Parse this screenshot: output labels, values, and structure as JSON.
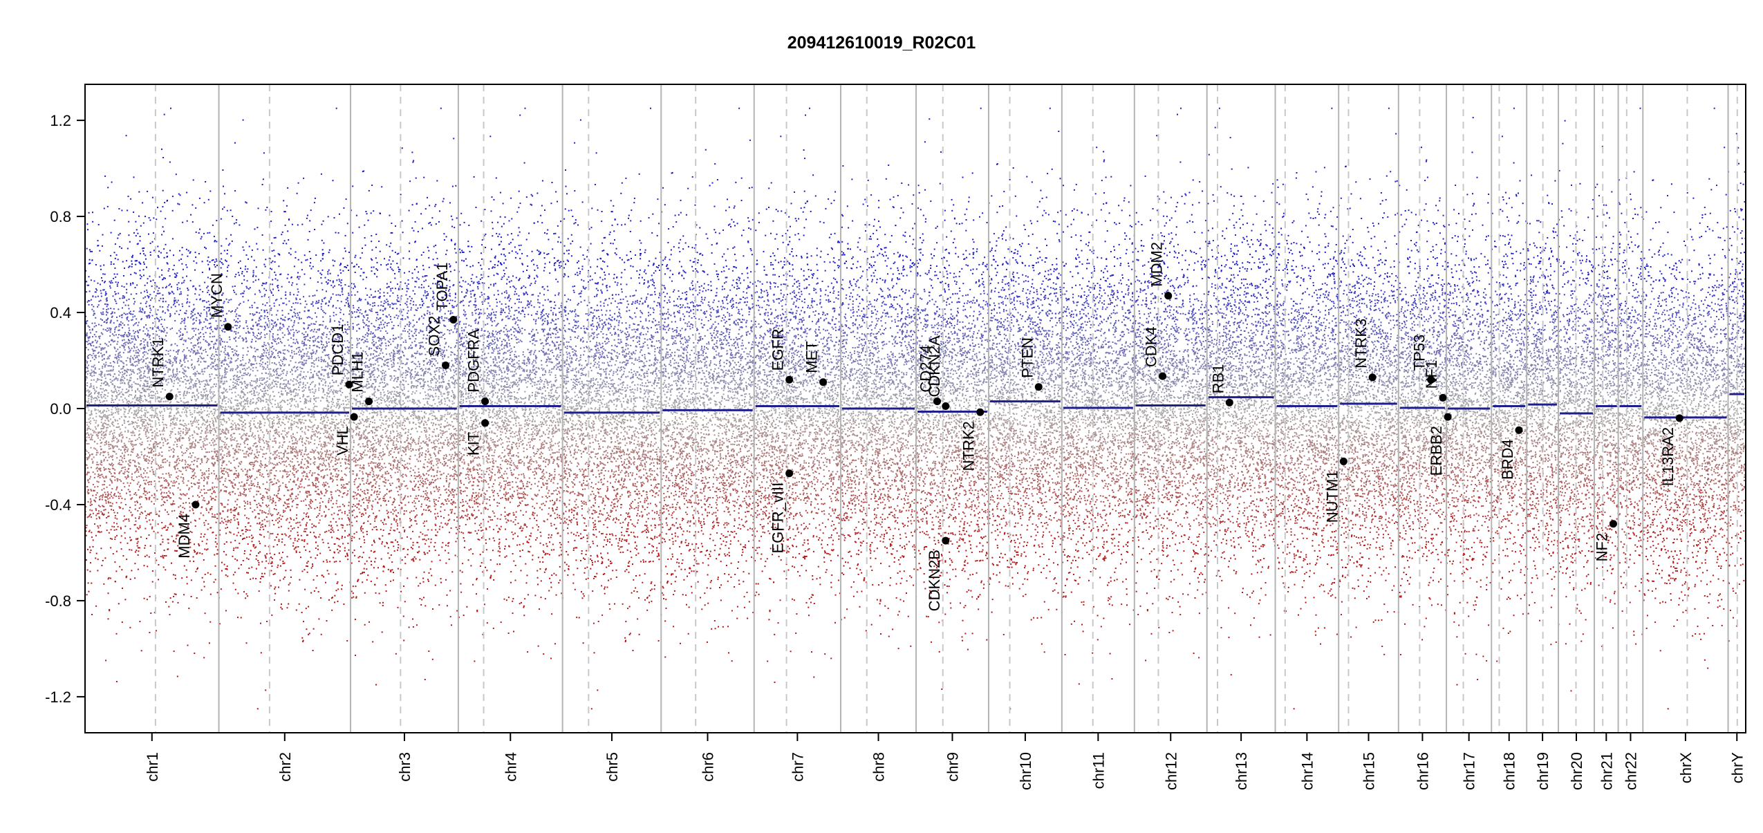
{
  "chart_data": {
    "type": "scatter",
    "title": "209412610019_R02C01",
    "ylim": [
      -1.35,
      1.35
    ],
    "yticks": [
      -1.2,
      -0.8,
      -0.4,
      0.0,
      0.4,
      0.8,
      1.2
    ],
    "ytick_labels": [
      "-1.2",
      "-0.8",
      "-0.4",
      "0.0",
      "0.4",
      "0.8",
      "1.2"
    ],
    "grid": false,
    "colors": {
      "gain": "#1a1ac8",
      "loss": "#b41414",
      "neutral": "#aaaaaa",
      "segment": "#1e1e8c",
      "boundary": "#b4b4b4",
      "centromere": "#c8c8c8",
      "gene_point": "#000000"
    },
    "chromosomes": [
      {
        "name": "chr1",
        "start": 0,
        "end": 190,
        "centromere": 100,
        "segment": 0.013
      },
      {
        "name": "chr2",
        "start": 190,
        "end": 377,
        "centromere": 262,
        "segment": -0.017
      },
      {
        "name": "chr3",
        "start": 377,
        "end": 530,
        "centromere": 448,
        "segment": 0.0
      },
      {
        "name": "chr4",
        "start": 530,
        "end": 678,
        "centromere": 566,
        "segment": 0.01
      },
      {
        "name": "chr5",
        "start": 678,
        "end": 818,
        "centromere": 715,
        "segment": -0.017
      },
      {
        "name": "chr6",
        "start": 818,
        "end": 950,
        "centromere": 867,
        "segment": -0.007
      },
      {
        "name": "chr7",
        "start": 950,
        "end": 1073,
        "centromere": 996,
        "segment": 0.01
      },
      {
        "name": "chr8",
        "start": 1073,
        "end": 1180,
        "centromere": 1110,
        "segment": 0.0
      },
      {
        "name": "chr9",
        "start": 1180,
        "end": 1283,
        "centromere": 1218,
        "segment": -0.013
      },
      {
        "name": "chr10",
        "start": 1283,
        "end": 1387,
        "centromere": 1313,
        "segment": 0.03
      },
      {
        "name": "chr11",
        "start": 1387,
        "end": 1490,
        "centromere": 1431,
        "segment": 0.003
      },
      {
        "name": "chr12",
        "start": 1490,
        "end": 1593,
        "centromere": 1524,
        "segment": 0.013
      },
      {
        "name": "chr13",
        "start": 1593,
        "end": 1690,
        "centromere": 1608,
        "segment": 0.047
      },
      {
        "name": "chr14",
        "start": 1690,
        "end": 1780,
        "centromere": 1704,
        "segment": 0.01
      },
      {
        "name": "chr15",
        "start": 1780,
        "end": 1865,
        "centromere": 1794,
        "segment": 0.02
      },
      {
        "name": "chr16",
        "start": 1865,
        "end": 1933,
        "centromere": 1895,
        "segment": 0.003
      },
      {
        "name": "chr17",
        "start": 1933,
        "end": 1997,
        "centromere": 1957,
        "segment": 0.0
      },
      {
        "name": "chr18",
        "start": 1997,
        "end": 2047,
        "centromere": 2008,
        "segment": 0.01
      },
      {
        "name": "chr19",
        "start": 2047,
        "end": 2092,
        "centromere": 2070,
        "segment": 0.017
      },
      {
        "name": "chr20",
        "start": 2092,
        "end": 2143,
        "centromere": 2117,
        "segment": -0.02
      },
      {
        "name": "chr21",
        "start": 2143,
        "end": 2177,
        "centromere": 2155,
        "segment": 0.01
      },
      {
        "name": "chr22",
        "start": 2177,
        "end": 2212,
        "centromere": 2189,
        "segment": 0.01
      },
      {
        "name": "chrX",
        "start": 2212,
        "end": 2333,
        "centromere": 2275,
        "segment": -0.037
      },
      {
        "name": "chrY",
        "start": 2333,
        "end": 2358,
        "centromere": 2346,
        "segment": 0.06
      }
    ],
    "genes": [
      {
        "name": "NTRK1",
        "x": 120,
        "y": 0.05,
        "label": "above"
      },
      {
        "name": "MDM4",
        "x": 157,
        "y": -0.4,
        "label": "below"
      },
      {
        "name": "MYCN",
        "x": 203,
        "y": 0.34,
        "label": "above"
      },
      {
        "name": "PDCD1",
        "x": 375,
        "y": 0.1,
        "label": "above"
      },
      {
        "name": "VHL",
        "x": 382,
        "y": -0.035,
        "label": "below"
      },
      {
        "name": "MLH1",
        "x": 403,
        "y": 0.03,
        "label": "above"
      },
      {
        "name": "SOX2",
        "x": 512,
        "y": 0.18,
        "label": "above"
      },
      {
        "name": "TOPA1",
        "x": 523,
        "y": 0.37,
        "label": "above"
      },
      {
        "name": "PDGFRA",
        "x": 568,
        "y": 0.03,
        "label": "above"
      },
      {
        "name": "KIT",
        "x": 568,
        "y": -0.06,
        "label": "below"
      },
      {
        "name": "EGFR",
        "x": 1000,
        "y": 0.12,
        "label": "above"
      },
      {
        "name": "EGFR_vIII",
        "x": 1000,
        "y": -0.27,
        "label": "below"
      },
      {
        "name": "MET",
        "x": 1048,
        "y": 0.11,
        "label": "above"
      },
      {
        "name": "CD274",
        "x": 1210,
        "y": 0.03,
        "label": "above"
      },
      {
        "name": "CDKN2A",
        "x": 1222,
        "y": 0.01,
        "label": "above"
      },
      {
        "name": "CDKN2B",
        "x": 1222,
        "y": -0.55,
        "label": "below"
      },
      {
        "name": "NTRK2",
        "x": 1271,
        "y": -0.015,
        "label": "below"
      },
      {
        "name": "PTEN",
        "x": 1354,
        "y": 0.09,
        "label": "above"
      },
      {
        "name": "CDK4",
        "x": 1530,
        "y": 0.135,
        "label": "above"
      },
      {
        "name": "MDM2",
        "x": 1538,
        "y": 0.47,
        "label": "above"
      },
      {
        "name": "RB1",
        "x": 1625,
        "y": 0.025,
        "label": "above"
      },
      {
        "name": "NUTM1",
        "x": 1787,
        "y": -0.22,
        "label": "below"
      },
      {
        "name": "NTRK3",
        "x": 1828,
        "y": 0.13,
        "label": "above"
      },
      {
        "name": "TP53",
        "x": 1911,
        "y": 0.12,
        "label": "above"
      },
      {
        "name": "NF1",
        "x": 1928,
        "y": 0.045,
        "label": "above"
      },
      {
        "name": "ERBB2",
        "x": 1935,
        "y": -0.035,
        "label": "below"
      },
      {
        "name": "BRD4",
        "x": 2036,
        "y": -0.09,
        "label": "below"
      },
      {
        "name": "NF2",
        "x": 2170,
        "y": -0.48,
        "label": "below"
      },
      {
        "name": "IL13RA2",
        "x": 2264,
        "y": -0.04,
        "label": "below"
      }
    ]
  }
}
